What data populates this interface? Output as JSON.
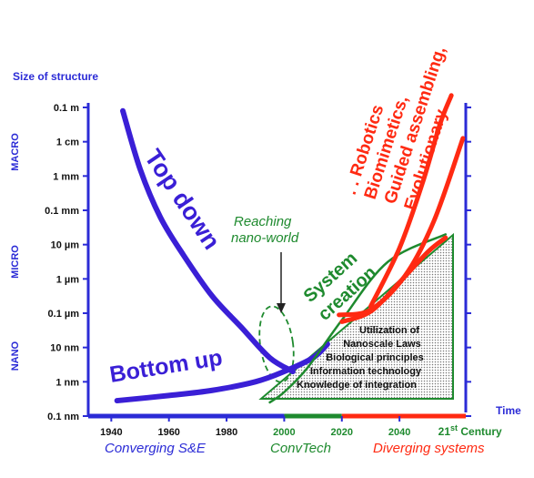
{
  "chart_data": {
    "type": "line",
    "ylabel": "Size of structure",
    "xlabel": "Time",
    "y_ticks": [
      "0.1 m",
      "1 cm",
      "1 mm",
      "0.1 mm",
      "10 µm",
      "1 µm",
      "0.1 µm",
      "10 nm",
      "1 nm",
      "0.1 nm"
    ],
    "y_log10_m": [
      -1,
      -2,
      -3,
      -4,
      -5,
      -6,
      -7,
      -8,
      -9,
      -10
    ],
    "ylim_log10_m": [
      -10,
      -0.6
    ],
    "y_regions": [
      {
        "label": "MACRO",
        "from": -3.6,
        "to": -1.0
      },
      {
        "label": "MICRO",
        "from": -6.6,
        "to": -4.4
      },
      {
        "label": "NANO",
        "from": -9.3,
        "to": -7.2
      }
    ],
    "x_ticks": [
      1940,
      1960,
      1980,
      2000,
      2020,
      2040
    ],
    "x_tick_extra": {
      "text": "21",
      "sup": "st",
      "suffix": " Century",
      "x": 2061
    },
    "xlim": [
      1932,
      2063
    ],
    "periods": [
      {
        "label": "Converging S&E",
        "from": 1932,
        "to": 2000,
        "color": "#2b2bd6"
      },
      {
        "label": "ConvTech",
        "from": 2000,
        "to": 2020,
        "color": "#1e8a2e"
      },
      {
        "label": "Diverging systems",
        "from": 2020,
        "to": 2063,
        "color": "#ff2a12"
      }
    ],
    "series": [
      {
        "name": "Top down",
        "color": "#3a1fd6",
        "x": [
          1944,
          1950,
          1957,
          1965,
          1975,
          1985,
          1995,
          2003
        ],
        "y": [
          -1.1,
          -2.8,
          -4.2,
          -5.3,
          -6.5,
          -7.4,
          -8.3,
          -8.7
        ]
      },
      {
        "name": "Bottom up",
        "color": "#3a1fd6",
        "x": [
          1942,
          1960,
          1975,
          1990,
          2000,
          2010,
          2015
        ],
        "y": [
          -9.55,
          -9.4,
          -9.25,
          -9.0,
          -8.7,
          -8.3,
          -7.9
        ]
      },
      {
        "name": "System creation",
        "color": "#1e8a2e",
        "x": [
          1995,
          2000,
          2008,
          2020,
          2036,
          2056
        ],
        "y": [
          -9.6,
          -9.3,
          -8.6,
          -7.2,
          -5.5,
          -4.7
        ]
      },
      {
        "name": "Evolutionary upper",
        "color": "#ff2a12",
        "x": [
          2030,
          2040,
          2048,
          2054,
          2058
        ],
        "y": [
          -6.8,
          -5.1,
          -3.2,
          -1.5,
          -0.65
        ]
      },
      {
        "name": "Evolutionary middle",
        "color": "#ff2a12",
        "x": [
          2019,
          2030,
          2042,
          2052,
          2062
        ],
        "y": [
          -7.05,
          -6.9,
          -5.9,
          -4.3,
          -1.9
        ]
      },
      {
        "name": "Evolutionary lower",
        "color": "#ff2a12",
        "x": [
          2020,
          2030,
          2040,
          2050,
          2056
        ],
        "y": [
          -7.25,
          -6.95,
          -6.1,
          -5.2,
          -4.8
        ]
      }
    ],
    "annotations": {
      "top_down": "Top down",
      "bottom_up": "Bottom up",
      "reaching": [
        "Reaching",
        "nano-world"
      ],
      "system": [
        "System",
        "creation"
      ],
      "diverging": [
        ". . Robotics",
        "Biomimetics,",
        "Guided assembling,",
        "Evolutionary . ."
      ],
      "triangle": [
        "Utilization of",
        "Nanoscale Laws",
        "Biological principles",
        "Information technology",
        "Knowledge of integration"
      ]
    }
  }
}
